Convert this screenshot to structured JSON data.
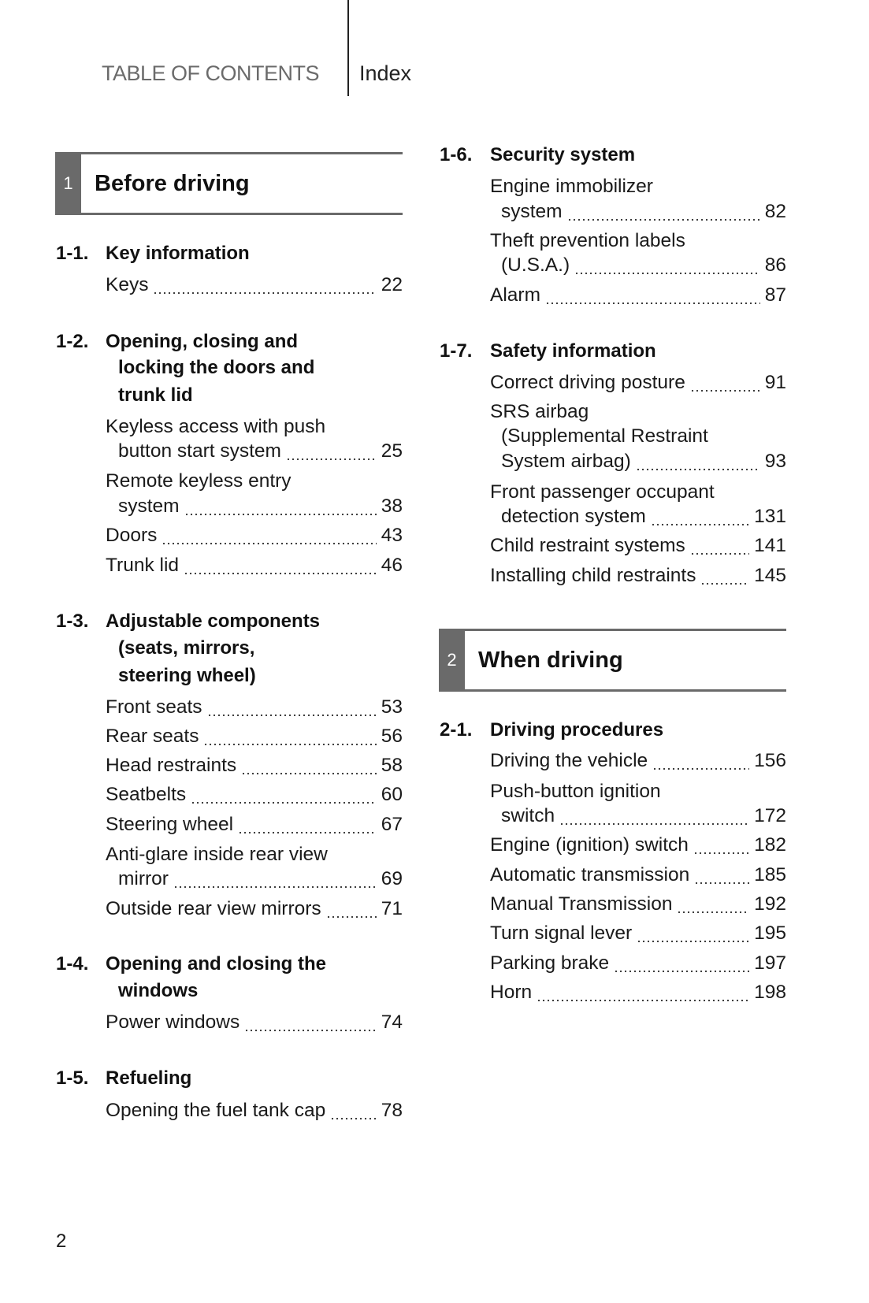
{
  "header": {
    "toc": "TABLE OF CONTENTS",
    "index": "Index"
  },
  "chapters": [
    {
      "number": "1",
      "title": "Before driving"
    },
    {
      "number": "2",
      "title": "When driving"
    }
  ],
  "left_sections": [
    {
      "num": "1-1.",
      "title": [
        "Key information"
      ],
      "entries": [
        {
          "lines": [
            "Keys"
          ],
          "page": "22"
        }
      ]
    },
    {
      "num": "1-2.",
      "title": [
        "Opening, closing and",
        "locking the doors and",
        "trunk lid"
      ],
      "entries": [
        {
          "lines": [
            "Keyless access with push",
            "button start system"
          ],
          "page": "25"
        },
        {
          "lines": [
            "Remote keyless entry",
            "system"
          ],
          "page": "38"
        },
        {
          "lines": [
            "Doors"
          ],
          "page": "43"
        },
        {
          "lines": [
            "Trunk lid"
          ],
          "page": "46"
        }
      ]
    },
    {
      "num": "1-3.",
      "title": [
        "Adjustable components",
        "(seats, mirrors,",
        "steering wheel)"
      ],
      "entries": [
        {
          "lines": [
            "Front seats"
          ],
          "page": "53"
        },
        {
          "lines": [
            "Rear seats"
          ],
          "page": "56"
        },
        {
          "lines": [
            "Head restraints"
          ],
          "page": "58"
        },
        {
          "lines": [
            "Seatbelts"
          ],
          "page": "60"
        },
        {
          "lines": [
            "Steering wheel"
          ],
          "page": "67"
        },
        {
          "lines": [
            "Anti-glare inside rear view",
            "mirror"
          ],
          "page": "69"
        },
        {
          "lines": [
            "Outside rear view mirrors"
          ],
          "page": "71"
        }
      ]
    },
    {
      "num": "1-4.",
      "title": [
        "Opening and closing the",
        "windows"
      ],
      "entries": [
        {
          "lines": [
            "Power windows"
          ],
          "page": "74"
        }
      ]
    },
    {
      "num": "1-5.",
      "title": [
        "Refueling"
      ],
      "entries": [
        {
          "lines": [
            "Opening the fuel tank cap"
          ],
          "page": "78"
        }
      ]
    }
  ],
  "right_sections": [
    {
      "num": "1-6.",
      "title": [
        "Security system"
      ],
      "entries": [
        {
          "lines": [
            "Engine immobilizer",
            "system"
          ],
          "page": "82"
        },
        {
          "lines": [
            "Theft prevention labels",
            "(U.S.A.)"
          ],
          "page": "86"
        },
        {
          "lines": [
            "Alarm"
          ],
          "page": "87"
        }
      ]
    },
    {
      "num": "1-7.",
      "title": [
        "Safety information"
      ],
      "entries": [
        {
          "lines": [
            "Correct driving posture"
          ],
          "page": "91"
        },
        {
          "lines": [
            "SRS airbag",
            "(Supplemental Restraint",
            "System airbag)"
          ],
          "page": "93"
        },
        {
          "lines": [
            "Front passenger occupant",
            "detection system"
          ],
          "page": "131"
        },
        {
          "lines": [
            "Child restraint systems"
          ],
          "page": "141"
        },
        {
          "lines": [
            "Installing child restraints"
          ],
          "page": "145"
        }
      ]
    },
    {
      "num": "2-1.",
      "title": [
        "Driving procedures"
      ],
      "entries": [
        {
          "lines": [
            "Driving the vehicle"
          ],
          "page": "156"
        },
        {
          "lines": [
            "Push-button ignition",
            "switch"
          ],
          "page": "172"
        },
        {
          "lines": [
            "Engine (ignition) switch"
          ],
          "page": "182"
        },
        {
          "lines": [
            "Automatic transmission"
          ],
          "page": "185"
        },
        {
          "lines": [
            "Manual Transmission"
          ],
          "page": "192"
        },
        {
          "lines": [
            "Turn signal lever"
          ],
          "page": "195"
        },
        {
          "lines": [
            "Parking brake"
          ],
          "page": "197"
        },
        {
          "lines": [
            "Horn"
          ],
          "page": "198"
        }
      ]
    }
  ],
  "page_number": "2"
}
